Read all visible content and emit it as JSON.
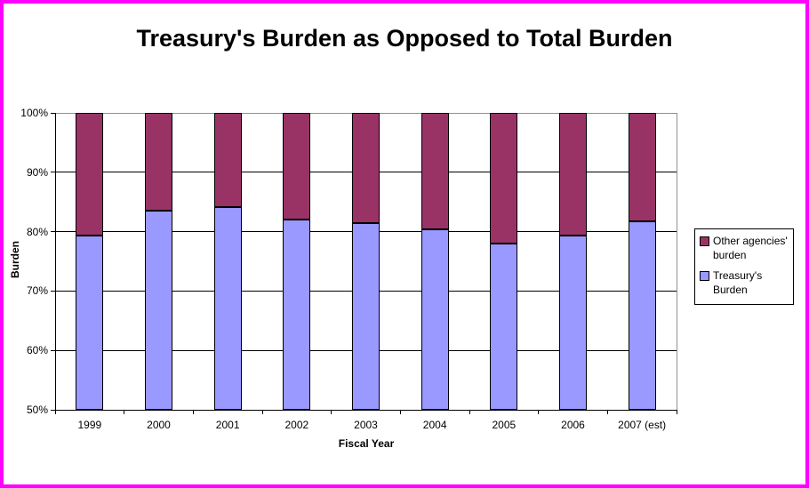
{
  "frame": {
    "border_color": "#FF00FF",
    "background": "#FFFFFF"
  },
  "chart_data": {
    "type": "bar",
    "stacked": true,
    "title": "Treasury's Burden as Opposed to Total Burden",
    "xlabel": "Fiscal Year",
    "ylabel": "Burden",
    "ylim": [
      50,
      100
    ],
    "yticks": [
      50,
      60,
      70,
      80,
      90,
      100
    ],
    "ytick_labels": [
      "50%",
      "60%",
      "70%",
      "80%",
      "90%",
      "100%"
    ],
    "categories": [
      "1999",
      "2000",
      "2001",
      "2002",
      "2003",
      "2004",
      "2005",
      "2006",
      "2007 (est)"
    ],
    "series": [
      {
        "name": "Treasury's Burden",
        "color": "#9999FF",
        "values": [
          79.4,
          83.6,
          84.1,
          82.1,
          81.4,
          80.4,
          78.0,
          79.3,
          81.8
        ]
      },
      {
        "name": "Other agencies' burden",
        "color": "#993366",
        "values": [
          20.6,
          16.4,
          15.9,
          17.9,
          18.6,
          19.6,
          22.0,
          20.7,
          18.2
        ]
      }
    ],
    "legend_position": "right",
    "grid": true,
    "gridline_color": "#000000",
    "plot_border_color": "#909090"
  }
}
